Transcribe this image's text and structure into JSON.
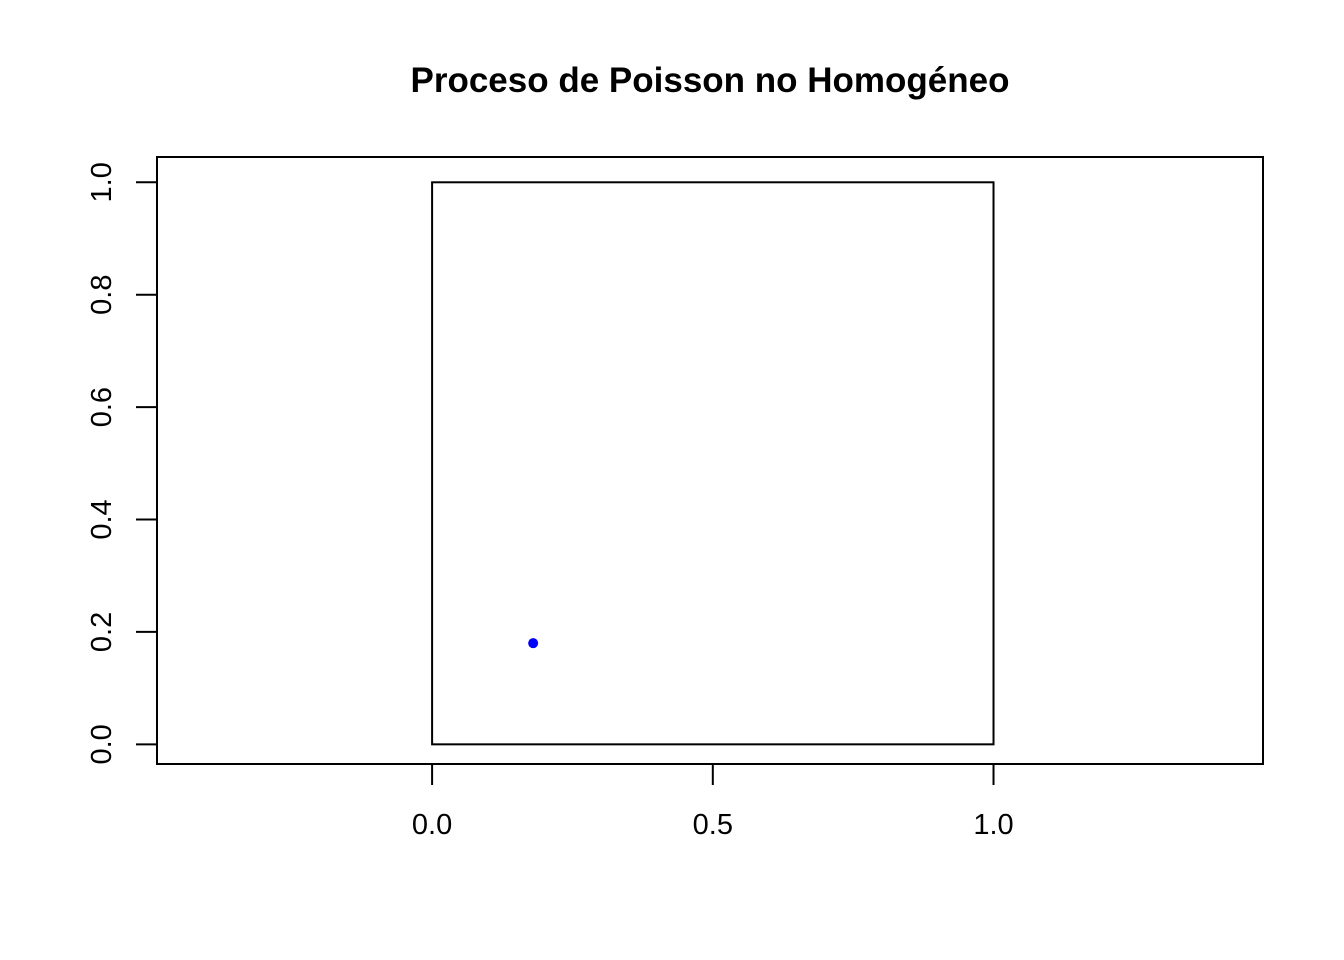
{
  "chart_data": {
    "type": "scatter",
    "title": "Proceso de Poisson no Homogéneo",
    "xlabel": "",
    "ylabel": "",
    "xlim": [
      -0.49,
      1.48
    ],
    "ylim": [
      -0.035,
      1.045
    ],
    "x_ticks": [
      {
        "value": 0.0,
        "label": "0.0"
      },
      {
        "value": 0.5,
        "label": "0.5"
      },
      {
        "value": 1.0,
        "label": "1.0"
      }
    ],
    "y_ticks": [
      {
        "value": 0.0,
        "label": "0.0"
      },
      {
        "value": 0.2,
        "label": "0.2"
      },
      {
        "value": 0.4,
        "label": "0.4"
      },
      {
        "value": 0.6,
        "label": "0.6"
      },
      {
        "value": 0.8,
        "label": "0.8"
      },
      {
        "value": 1.0,
        "label": "1.0"
      }
    ],
    "window": {
      "xmin": 0.0,
      "xmax": 1.0,
      "ymin": 0.0,
      "ymax": 1.0
    },
    "series": [
      {
        "points": [
          {
            "x": 0.18,
            "y": 0.18
          }
        ],
        "color": "#0000ff"
      }
    ],
    "grid": false,
    "legend": "none"
  }
}
